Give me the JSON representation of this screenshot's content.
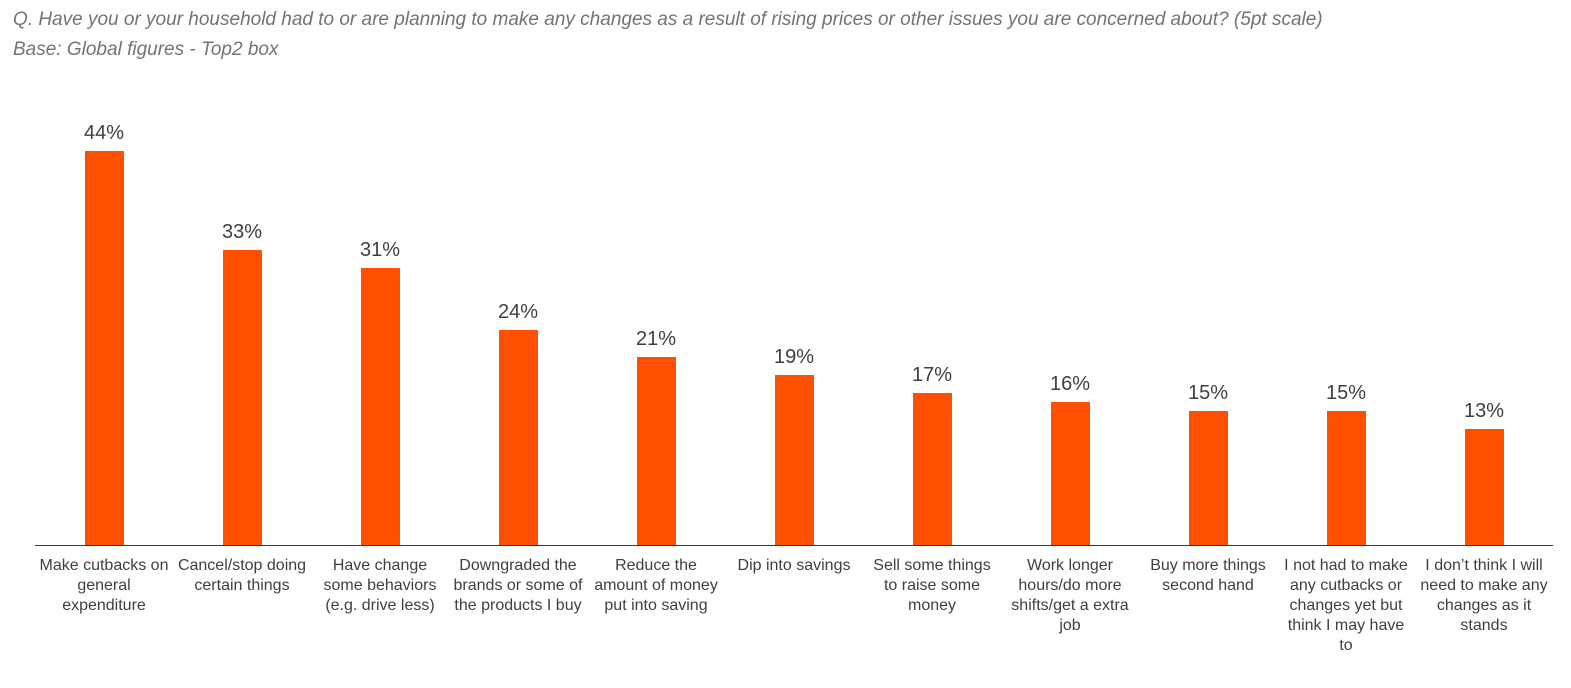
{
  "header": {
    "question_line": "Q. Have you or your household had to or are planning to make any changes as a result of rising prices or other issues you are concerned about? (5pt scale)",
    "base_line": "Base: Global figures - Top2 box"
  },
  "chart_data": {
    "type": "bar",
    "title": "Q. Have you or your household had to or are planning to make any changes as a result of rising prices or other issues you are concerned about? (5pt scale)",
    "subtitle": "Base: Global figures - Top2 box",
    "categories": [
      "Make cutbacks on general expenditure",
      "Cancel/stop doing certain things",
      "Have change some behaviors (e.g. drive less)",
      "Downgraded the brands or some of the products I buy",
      "Reduce the amount of money put into saving",
      "Dip into savings",
      "Sell some things to raise some money",
      "Work longer hours/do more shifts/get a extra job",
      "Buy more things second hand",
      "I not had to make any cutbacks or changes yet but think I may have to",
      "I don’t think I will need to make any changes as it stands"
    ],
    "values": [
      44,
      33,
      31,
      24,
      21,
      19,
      17,
      16,
      15,
      15,
      13
    ],
    "value_labels": [
      "44%",
      "33%",
      "31%",
      "24%",
      "21%",
      "19%",
      "17%",
      "16%",
      "15%",
      "15%",
      "13%"
    ],
    "xlabel": "",
    "ylabel": "",
    "ylim": [
      0,
      48
    ],
    "grid": false,
    "legend": "none",
    "bar_color": "#FF5000",
    "value_label_color": "#3F3F3F",
    "category_label_color": "#3F3F3F",
    "axis_line_color": "#3A3A3A",
    "title_color": "#737373"
  }
}
